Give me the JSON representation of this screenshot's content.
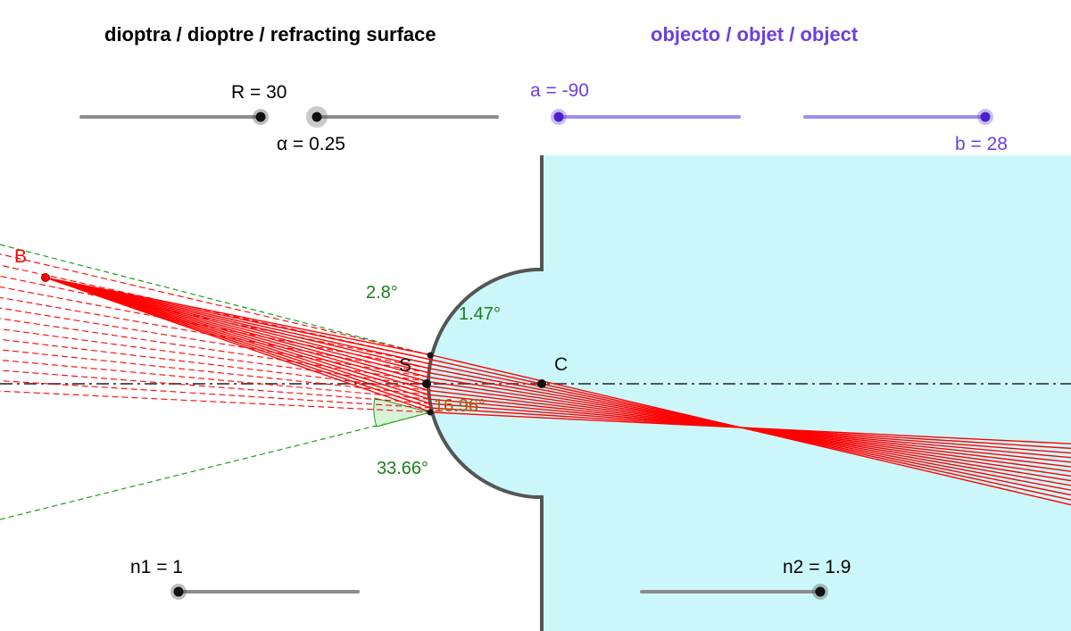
{
  "headers": {
    "dioptre": "dioptra / dioptre / refracting surface",
    "object": "objecto / objet / object"
  },
  "sliders": {
    "R": {
      "label": "R = 30",
      "value": 30,
      "fraction": 0.86
    },
    "alpha": {
      "label": "α = 0.25",
      "value": 0.25,
      "fraction": 0.0
    },
    "a": {
      "label": "a = -90",
      "value": -90,
      "fraction": 0.0
    },
    "b": {
      "label": "b = 28",
      "value": 28,
      "fraction": 1.0
    },
    "n1": {
      "label": "n1 = 1",
      "value": 1,
      "fraction": 0.0
    },
    "n2": {
      "label": "n2 = 1.9",
      "value": 1.9,
      "fraction": 1.0
    }
  },
  "points": {
    "B": "B",
    "S": "S",
    "C": "C"
  },
  "angles": {
    "top_outer": "2.8°",
    "top_inner": "1.47°",
    "refraction": "16.96°",
    "bottom": "33.66°"
  },
  "colors": {
    "object": "#6b3fe0",
    "ray": "#ff0000",
    "angle": "#1a7f1a",
    "medium": "#ccf7fa",
    "slider": "#8c8c8c",
    "slider_object": "#a08ce8",
    "axis": "#555555"
  }
}
